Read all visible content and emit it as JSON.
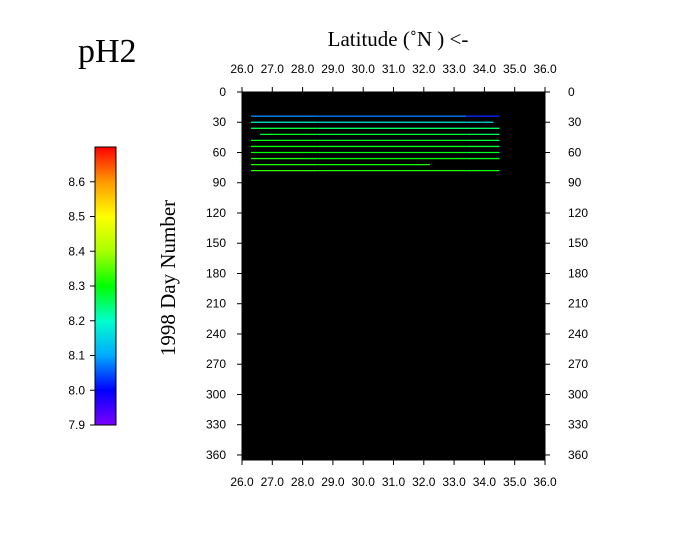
{
  "chart_data": {
    "type": "heatmap",
    "title": "pH2",
    "xlabel": "Latitude  (˚N )  <-",
    "ylabel": "1998   Day  Number",
    "xlim": [
      26.0,
      36.0
    ],
    "ylim": [
      0,
      365
    ],
    "y_inverted": true,
    "x_ticks": [
      "26.0",
      "27.0",
      "28.0",
      "29.0",
      "30.0",
      "31.0",
      "32.0",
      "33.0",
      "34.0",
      "35.0",
      "36.0"
    ],
    "y_ticks": [
      "0",
      "30",
      "60",
      "90",
      "120",
      "150",
      "180",
      "210",
      "240",
      "270",
      "300",
      "330",
      "360"
    ],
    "background": "#000000",
    "colorbar": {
      "min": 7.9,
      "max": 8.7,
      "ticks": [
        "7.9",
        "8.0",
        "8.1",
        "8.2",
        "8.3",
        "8.4",
        "8.5",
        "8.6"
      ],
      "colors": [
        "#7b00ff",
        "#0000ff",
        "#00aaff",
        "#00ffcc",
        "#00ff00",
        "#aaff00",
        "#ffff00",
        "#ff9900",
        "#ff0000"
      ]
    },
    "tracks": [
      {
        "day": 24,
        "x_start": 26.3,
        "x_end": 34.5,
        "breaks": [
          28.5,
          33.4
        ],
        "values": [
          8.08,
          8.07,
          8.02
        ]
      },
      {
        "day": 30,
        "x_start": 26.3,
        "x_end": 34.3,
        "breaks": [
          28.5,
          33.4
        ],
        "values": [
          8.19,
          8.18,
          8.16
        ]
      },
      {
        "day": 36,
        "x_start": 26.3,
        "x_end": 34.5,
        "breaks": [
          28.5
        ],
        "values": [
          8.27,
          8.25
        ]
      },
      {
        "day": 42,
        "x_start": 26.6,
        "x_end": 34.5,
        "breaks": [
          28.5,
          33.4
        ],
        "values": [
          8.28,
          8.27,
          8.26
        ]
      },
      {
        "day": 48,
        "x_start": 26.3,
        "x_end": 34.5,
        "breaks": [
          28.5,
          33.4
        ],
        "values": [
          8.29,
          8.28,
          8.27
        ]
      },
      {
        "day": 54,
        "x_start": 26.3,
        "x_end": 34.5,
        "breaks": [
          28.5,
          33.4
        ],
        "values": [
          8.3,
          8.29,
          8.28
        ]
      },
      {
        "day": 60,
        "x_start": 26.3,
        "x_end": 34.5,
        "breaks": [
          28.5,
          33.4
        ],
        "values": [
          8.3,
          8.29,
          8.28
        ]
      },
      {
        "day": 66,
        "x_start": 26.3,
        "x_end": 34.5,
        "breaks": [
          28.5,
          33.4
        ],
        "values": [
          8.31,
          8.3,
          8.29
        ]
      },
      {
        "day": 72,
        "x_start": 26.3,
        "x_end": 32.2,
        "breaks": [
          28.5
        ],
        "values": [
          8.32,
          8.31
        ]
      },
      {
        "day": 78,
        "x_start": 26.3,
        "x_end": 34.5,
        "breaks": [
          28.5,
          33.4
        ],
        "values": [
          8.33,
          8.32,
          8.31
        ]
      }
    ]
  }
}
